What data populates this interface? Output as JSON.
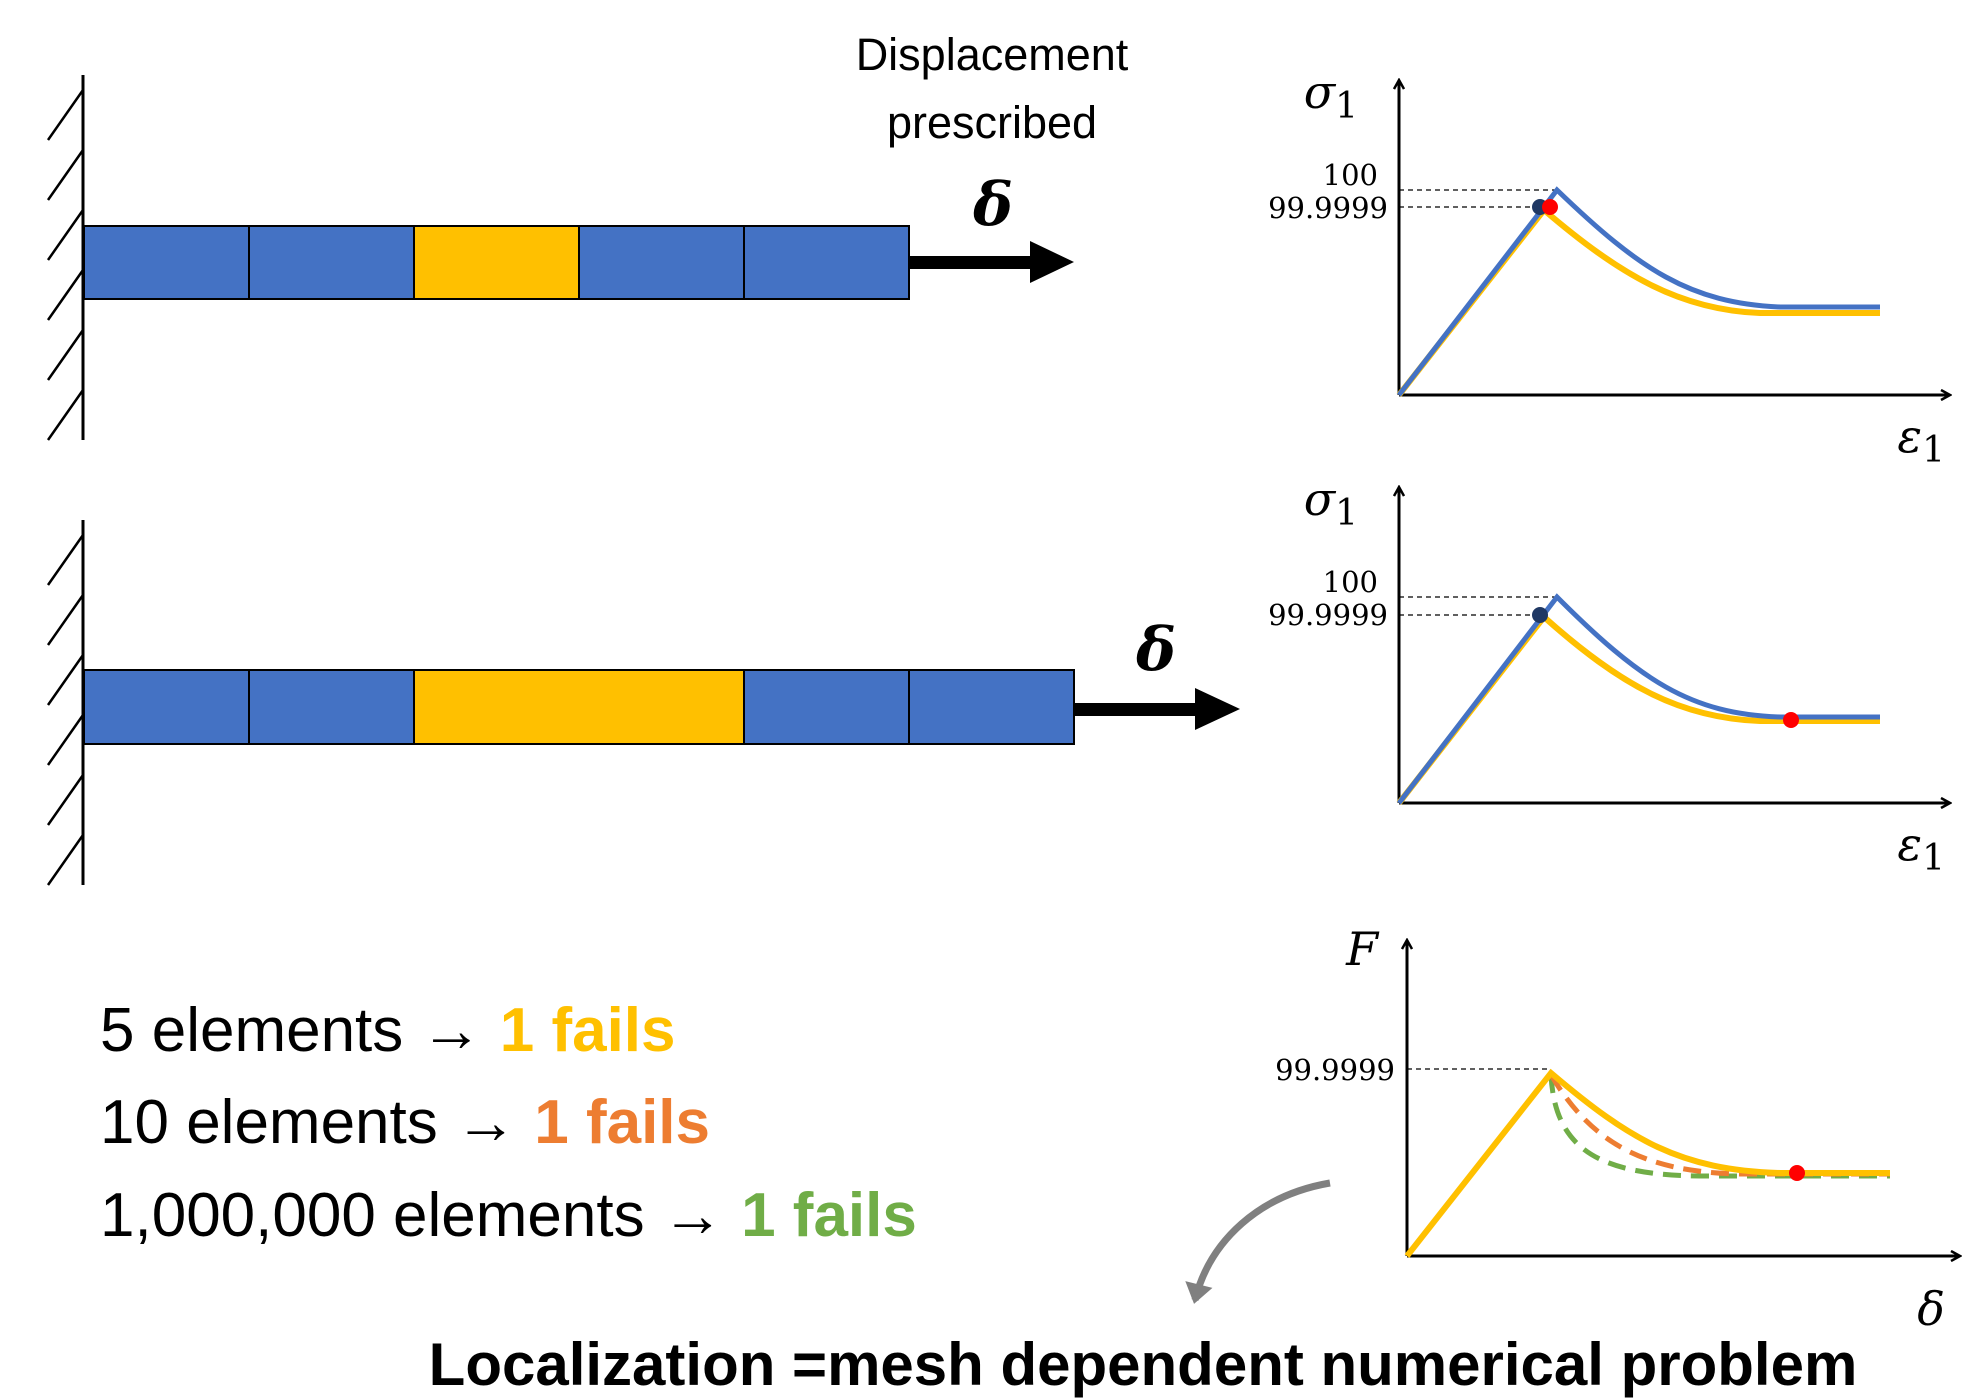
{
  "top_label": {
    "line1": "Displacement",
    "line2": "prescribed"
  },
  "delta_symbol": "δ",
  "colors": {
    "element_blue": "#4472C4",
    "element_yellow": "#FFC000",
    "curve_orange": "#ED7D31",
    "curve_green": "#70AD47",
    "point_red": "#FF0000",
    "point_navy": "#1F3864",
    "curve_arrow_gray": "#808080"
  },
  "bar_top": {
    "elements": [
      "blue",
      "blue",
      "yellow",
      "blue",
      "blue"
    ]
  },
  "bar_bottom": {
    "elements": [
      "blue",
      "blue",
      "yellow",
      "yellow",
      "blue",
      "blue"
    ]
  },
  "plot_top": {
    "y_label": "σ",
    "y_sub": "1",
    "x_label": "ε",
    "x_sub": "1",
    "tick_upper": "100",
    "tick_lower": "99.9999"
  },
  "plot_middle": {
    "y_label": "σ",
    "y_sub": "1",
    "x_label": "ε",
    "x_sub": "1",
    "tick_upper": "100",
    "tick_lower": "99.9999"
  },
  "plot_bottom": {
    "y_label": "F",
    "x_label": "δ",
    "tick": "99.9999"
  },
  "element_lines": [
    {
      "count": "5 elements",
      "arrow": "→",
      "result": "1 fails",
      "color": "#FFC000"
    },
    {
      "count": "10 elements",
      "arrow": "→",
      "result": "1 fails",
      "color": "#ED7D31"
    },
    {
      "count": "1,000,000 elements",
      "arrow": "→",
      "result": "1 fails",
      "color": "#70AD47"
    }
  ],
  "conclusion": "Localization =mesh dependent numerical problem"
}
